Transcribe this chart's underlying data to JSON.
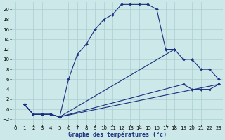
{
  "xlabel": "Graphe des températures (°c)",
  "background_color": "#cce8e8",
  "grid_color": "#aacfcf",
  "line_color": "#1a3080",
  "xlim": [
    -0.5,
    23.5
  ],
  "ylim": [
    -3,
    21.5
  ],
  "xticks": [
    0,
    1,
    2,
    3,
    4,
    5,
    6,
    7,
    8,
    9,
    10,
    11,
    12,
    13,
    14,
    15,
    16,
    17,
    18,
    19,
    20,
    21,
    22,
    23
  ],
  "yticks": [
    -2,
    0,
    2,
    4,
    6,
    8,
    10,
    12,
    14,
    16,
    18,
    20
  ],
  "line1_x": [
    1,
    2,
    3,
    4,
    5,
    6,
    7,
    8,
    9,
    10,
    11,
    12,
    13,
    14,
    15,
    16,
    17,
    18
  ],
  "line1_y": [
    1,
    -1,
    -1,
    -1,
    -1.5,
    6,
    11,
    13,
    16,
    18,
    19,
    21,
    21,
    21,
    21,
    20,
    12,
    12
  ],
  "line2_x": [
    1,
    2,
    3,
    4,
    5,
    18,
    19,
    20,
    21,
    22,
    23
  ],
  "line2_y": [
    1,
    -1,
    -1,
    -1,
    -1.5,
    12,
    10,
    10,
    8,
    8,
    6
  ],
  "line3_x": [
    1,
    2,
    3,
    4,
    5,
    23
  ],
  "line3_y": [
    1,
    -1,
    -1,
    -1,
    -1.5,
    5
  ],
  "line4_x": [
    1,
    2,
    3,
    4,
    5,
    19,
    20,
    21,
    22,
    23
  ],
  "line4_y": [
    1,
    -1,
    -1,
    -1,
    -1.5,
    5,
    4,
    4,
    4,
    5
  ]
}
